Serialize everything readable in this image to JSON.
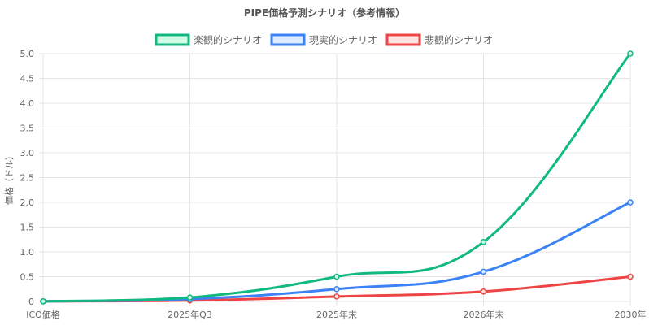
{
  "chart_data": {
    "type": "line",
    "title": "PIPE価格予測シナリオ（参考情報）",
    "xlabel": "",
    "ylabel": "価格（ドル）",
    "categories": [
      "ICO価格",
      "2025年Q3",
      "2025年末",
      "2026年末",
      "2030年"
    ],
    "ylim": [
      0,
      5
    ],
    "yticks": [
      0,
      0.5,
      1,
      1.5,
      2,
      2.5,
      3,
      3.5,
      4,
      4.5,
      5
    ],
    "ytick_labels": [
      "0",
      "0.5",
      "1.0",
      "1.5",
      "2.0",
      "2.5",
      "3.0",
      "3.5",
      "4.0",
      "4.5",
      "5.0"
    ],
    "grid": true,
    "legend_position": "top",
    "series": [
      {
        "name": "楽観的シナリオ",
        "color": "#10b981",
        "fill": "#d1fae5",
        "values": [
          0.003,
          0.08,
          0.5,
          1.2,
          5.0
        ]
      },
      {
        "name": "現実的シナリオ",
        "color": "#3b82f6",
        "fill": "#dbeafe",
        "values": [
          0.003,
          0.05,
          0.25,
          0.6,
          2.0
        ]
      },
      {
        "name": "悲観的シナリオ",
        "color": "#ef4444",
        "fill": "#fee2e2",
        "values": [
          0.003,
          0.02,
          0.1,
          0.2,
          0.5
        ]
      }
    ]
  }
}
